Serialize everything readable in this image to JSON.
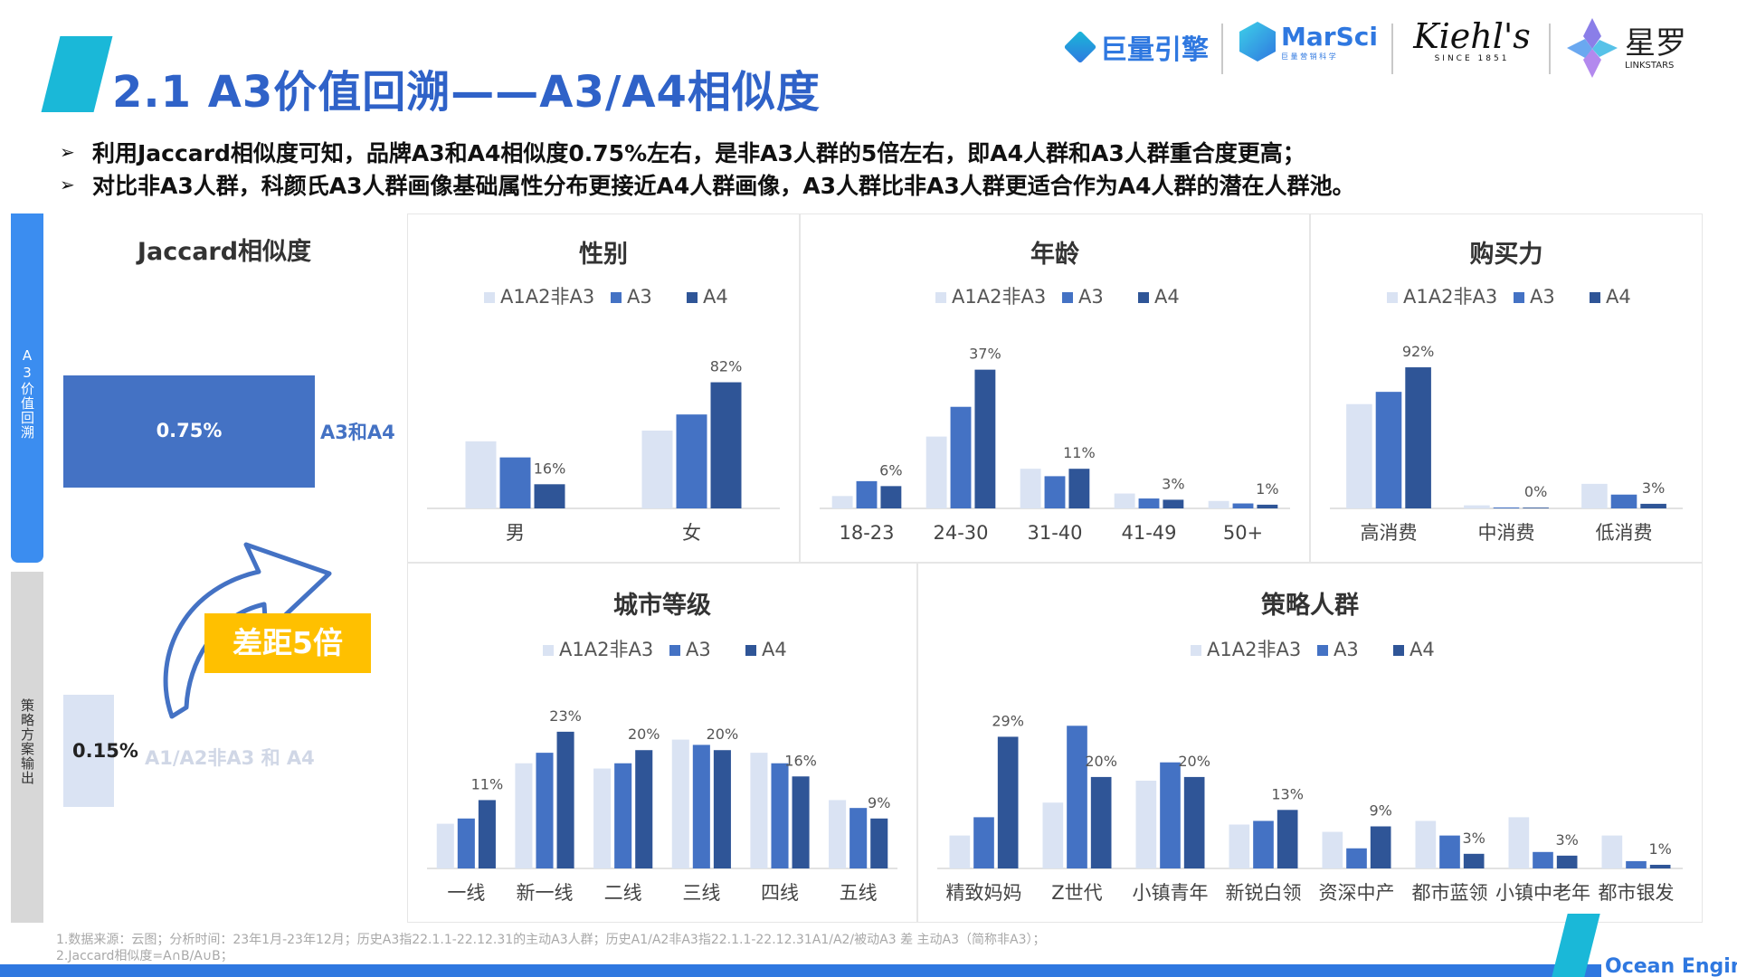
{
  "title": "2.1 A3价值回溯——A3/A4相似度",
  "logos": {
    "juliang": "巨量引擎",
    "marsci": "MarSci",
    "marsci_sub": "巨 量 营 销 科 学",
    "kiehls": "Kiehl's",
    "kiehls_sub": "SINCE 1851",
    "linkstars": "星罗",
    "linkstars_sub": "LINKSTARS"
  },
  "bullets": [
    "利用Jaccard相似度可知，品牌A3和A4相似度0.75%左右，是非A3人群的5倍左右，即A4人群和A3人群重合度更高；",
    "对比非A3人群，科颜氏A3人群画像基础属性分布更接近A4人群画像，A3人群比非A3人群更适合作为A4人群的潜在人群池。"
  ],
  "bullet_mark": "➢",
  "side_tabs": {
    "a": "A3价值回溯",
    "b": "策略方案输出"
  },
  "colors": {
    "non_a3": "#dae3f3",
    "a3": "#4472c4",
    "a4": "#2f5597",
    "accent": "#2f62c8",
    "gap": "#ffc000"
  },
  "legend_labels": [
    "A1A2非A3",
    "A3",
    "A4"
  ],
  "jaccard": {
    "title": "Jaccard相似度",
    "a3_a4_value": "0.75%",
    "a3_a4_label": "A3和A4",
    "non_a3_value": "0.15%",
    "non_a3_label": "A1/A2非A3 和 A4",
    "gap_label": "差距5倍"
  },
  "chart_data": [
    {
      "type": "bar",
      "title": "性别",
      "categories": [
        "男",
        "女"
      ],
      "series": [
        {
          "name": "A1A2非A3",
          "values": [
            25,
            29
          ]
        },
        {
          "name": "A3",
          "values": [
            19,
            35
          ]
        },
        {
          "name": "A4",
          "values": [
            9,
            47
          ]
        }
      ],
      "labels": [
        [
          "",
          "16%"
        ],
        [
          "",
          "82%"
        ]
      ],
      "ylim": [
        0,
        60
      ]
    },
    {
      "type": "bar",
      "title": "年龄",
      "categories": [
        "18-23",
        "24-30",
        "31-40",
        "41-49",
        "50+"
      ],
      "series": [
        {
          "name": "A1A2非A3",
          "values": [
            5,
            29,
            16,
            6,
            3
          ]
        },
        {
          "name": "A3",
          "values": [
            11,
            41,
            13,
            4,
            2
          ]
        },
        {
          "name": "A4",
          "values": [
            9,
            56,
            16,
            3.5,
            1.5
          ]
        }
      ],
      "labels": [
        "6%",
        "37%",
        "11%",
        "3%",
        "1%"
      ],
      "ylim": [
        0,
        65
      ]
    },
    {
      "type": "bar",
      "title": "购买力",
      "categories": [
        "高消费",
        "中消费",
        "低消费"
      ],
      "series": [
        {
          "name": "A1A2非A3",
          "values": [
            68,
            2,
            16
          ]
        },
        {
          "name": "A3",
          "values": [
            76,
            0.6,
            9
          ]
        },
        {
          "name": "A4",
          "values": [
            92,
            0.5,
            3
          ]
        }
      ],
      "labels": [
        "92%",
        "0%",
        "3%"
      ],
      "ylim": [
        0,
        105
      ]
    },
    {
      "type": "bar",
      "title": "城市等级",
      "categories": [
        "一线",
        "新一线",
        "二线",
        "三线",
        "四线",
        "五线"
      ],
      "series": [
        {
          "name": "A1A2非A3",
          "values": [
            8.5,
            20,
            19,
            24.5,
            22,
            13
          ]
        },
        {
          "name": "A3",
          "values": [
            9.5,
            22,
            20,
            23.5,
            20,
            11.5
          ]
        },
        {
          "name": "A4",
          "values": [
            13,
            26,
            22.5,
            22.5,
            17.5,
            9.5
          ]
        }
      ],
      "labels": [
        "11%",
        "23%",
        "20%",
        "20%",
        "16%",
        "9%"
      ],
      "ylim": [
        0,
        32
      ]
    },
    {
      "type": "bar",
      "title": "策略人群",
      "categories": [
        "精致妈妈",
        "Z世代",
        "小镇青年",
        "新锐白领",
        "资深中产",
        "都市蓝领",
        "小镇中老年",
        "都市银发"
      ],
      "series": [
        {
          "name": "A1A2非A3",
          "values": [
            9,
            18,
            24,
            12,
            10,
            13,
            14,
            9
          ]
        },
        {
          "name": "A3",
          "values": [
            14,
            39,
            29,
            13,
            5.5,
            9,
            4.5,
            2
          ]
        },
        {
          "name": "A4",
          "values": [
            36,
            25,
            25,
            16,
            11.5,
            4,
            3.5,
            1
          ]
        }
      ],
      "labels": [
        "29%",
        "20%",
        "20%",
        "13%",
        "9%",
        "3%",
        "3%",
        "1%"
      ],
      "ylim": [
        0,
        46
      ]
    }
  ],
  "footnotes": [
    "1.数据来源：云图；分析时间：23年1月-23年12月；历史A3指22.1.1-22.12.31的主动A3人群；历史A1/A2非A3指22.1.1-22.12.31A1/A2/被动A3 差 主动A3（简称非A3）；",
    "2.Jaccard相似度=A∩B/A∪B；"
  ],
  "footer_brand": "Ocean Engine"
}
